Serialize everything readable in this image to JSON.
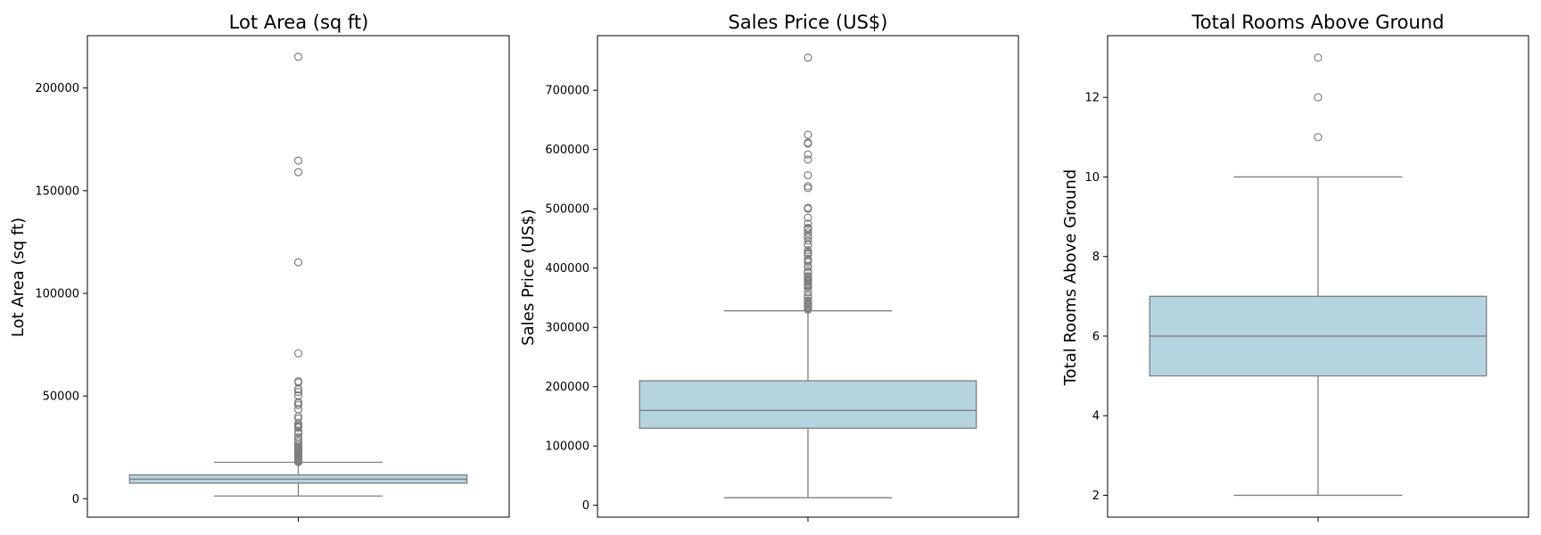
{
  "colors": {
    "box_fill": "#b4d4e0",
    "line": "#7f7f7f",
    "frame": "#000000"
  },
  "chart_data": [
    {
      "type": "box",
      "title": "Lot Area (sq ft)",
      "ylabel": "Lot Area (sq ft)",
      "ylim": [
        -9000,
        225500
      ],
      "yticks": [
        0,
        50000,
        100000,
        150000,
        200000
      ],
      "tick_labels": [
        "0",
        "50000",
        "100000",
        "150000",
        "200000"
      ],
      "stats": {
        "whisker_low": 1300,
        "q1": 7550,
        "median": 9480,
        "q3": 11600,
        "whisker_high": 17700
      },
      "outliers": [
        215245,
        164660,
        159000,
        115149,
        70761,
        57200,
        56600,
        53504,
        53227,
        52000,
        50271,
        47000,
        46589,
        45600,
        43500,
        40094,
        39104,
        36500,
        35760,
        35133,
        34650,
        32668,
        32463,
        31770,
        29959,
        28698,
        27650,
        26400,
        25419,
        25339,
        25095,
        24682,
        24090,
        23595,
        23257,
        22950,
        22420,
        21930,
        21533,
        21384,
        20896,
        20544,
        20431,
        19900,
        19690,
        19378,
        19296,
        19138,
        18890,
        18800,
        18450,
        18030,
        17871
      ]
    },
    {
      "type": "box",
      "title": "Sales Price (US$)",
      "ylabel": "Sales Price (US$)",
      "ylim": [
        -20000,
        792000
      ],
      "yticks": [
        0,
        100000,
        200000,
        300000,
        400000,
        500000,
        600000,
        700000
      ],
      "tick_labels": [
        "0",
        "100000",
        "200000",
        "300000",
        "400000",
        "500000",
        "600000",
        "700000"
      ],
      "stats": {
        "whisker_low": 12800,
        "q1": 130000,
        "median": 160000,
        "q3": 210000,
        "whisker_high": 328000
      },
      "outliers": [
        755000,
        625000,
        611657,
        610000,
        591587,
        582933,
        556581,
        538000,
        535000,
        501837,
        500000,
        485000,
        475000,
        468000,
        466500,
        465000,
        460000,
        455000,
        451950,
        446261,
        440000,
        438780,
        430000,
        426000,
        424870,
        423000,
        415298,
        412500,
        410000,
        403000,
        402861,
        402000,
        395192,
        395000,
        392500,
        392000,
        386250,
        385000,
        383970,
        381000,
        380000,
        378500,
        377500,
        377426,
        375000,
        372500,
        372402,
        370878,
        369900,
        367294,
        359100,
        354000,
        350000,
        345000,
        344133,
        341000,
        340000,
        339750,
        337500,
        337000,
        335000,
        333168,
        332000,
        330000
      ]
    },
    {
      "type": "box",
      "title": "Total Rooms Above Ground",
      "ylabel": "Total Rooms Above Ground",
      "ylim": [
        1.45,
        13.55
      ],
      "yticks": [
        2,
        4,
        6,
        8,
        10,
        12
      ],
      "tick_labels": [
        "2",
        "4",
        "6",
        "8",
        "10",
        "12"
      ],
      "stats": {
        "whisker_low": 2,
        "q1": 5,
        "median": 6,
        "q3": 7,
        "whisker_high": 10
      },
      "outliers": [
        11,
        12,
        13
      ]
    }
  ]
}
